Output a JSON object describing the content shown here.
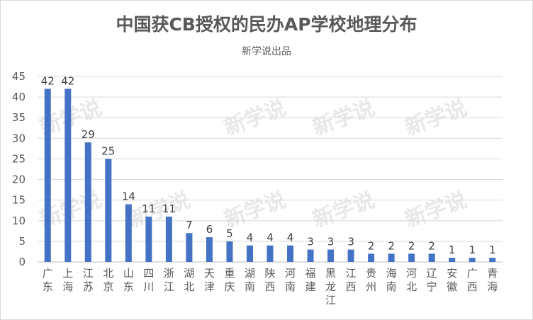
{
  "chart_data": {
    "type": "bar",
    "title": "中国获CB授权的民办AP学校地理分布",
    "subtitle": "新学说出品",
    "watermark": "新学说",
    "categories": [
      "广东",
      "上海",
      "江苏",
      "北京",
      "山东",
      "四川",
      "浙江",
      "湖北",
      "天津",
      "重庆",
      "湖南",
      "陕西",
      "河南",
      "福建",
      "黑龙江",
      "江西",
      "贵州",
      "海南",
      "河北",
      "辽宁",
      "安徽",
      "广西",
      "青海"
    ],
    "values": [
      42,
      42,
      29,
      25,
      14,
      11,
      11,
      7,
      6,
      5,
      4,
      4,
      4,
      3,
      3,
      3,
      2,
      2,
      2,
      2,
      1,
      1,
      1
    ],
    "ylim": [
      0,
      45
    ],
    "yticks": [
      0,
      5,
      10,
      15,
      20,
      25,
      30,
      35,
      40,
      45
    ],
    "grid": true,
    "legend": "none",
    "bar_color": "#4472c4",
    "grid_color": "#d9d9d9"
  }
}
